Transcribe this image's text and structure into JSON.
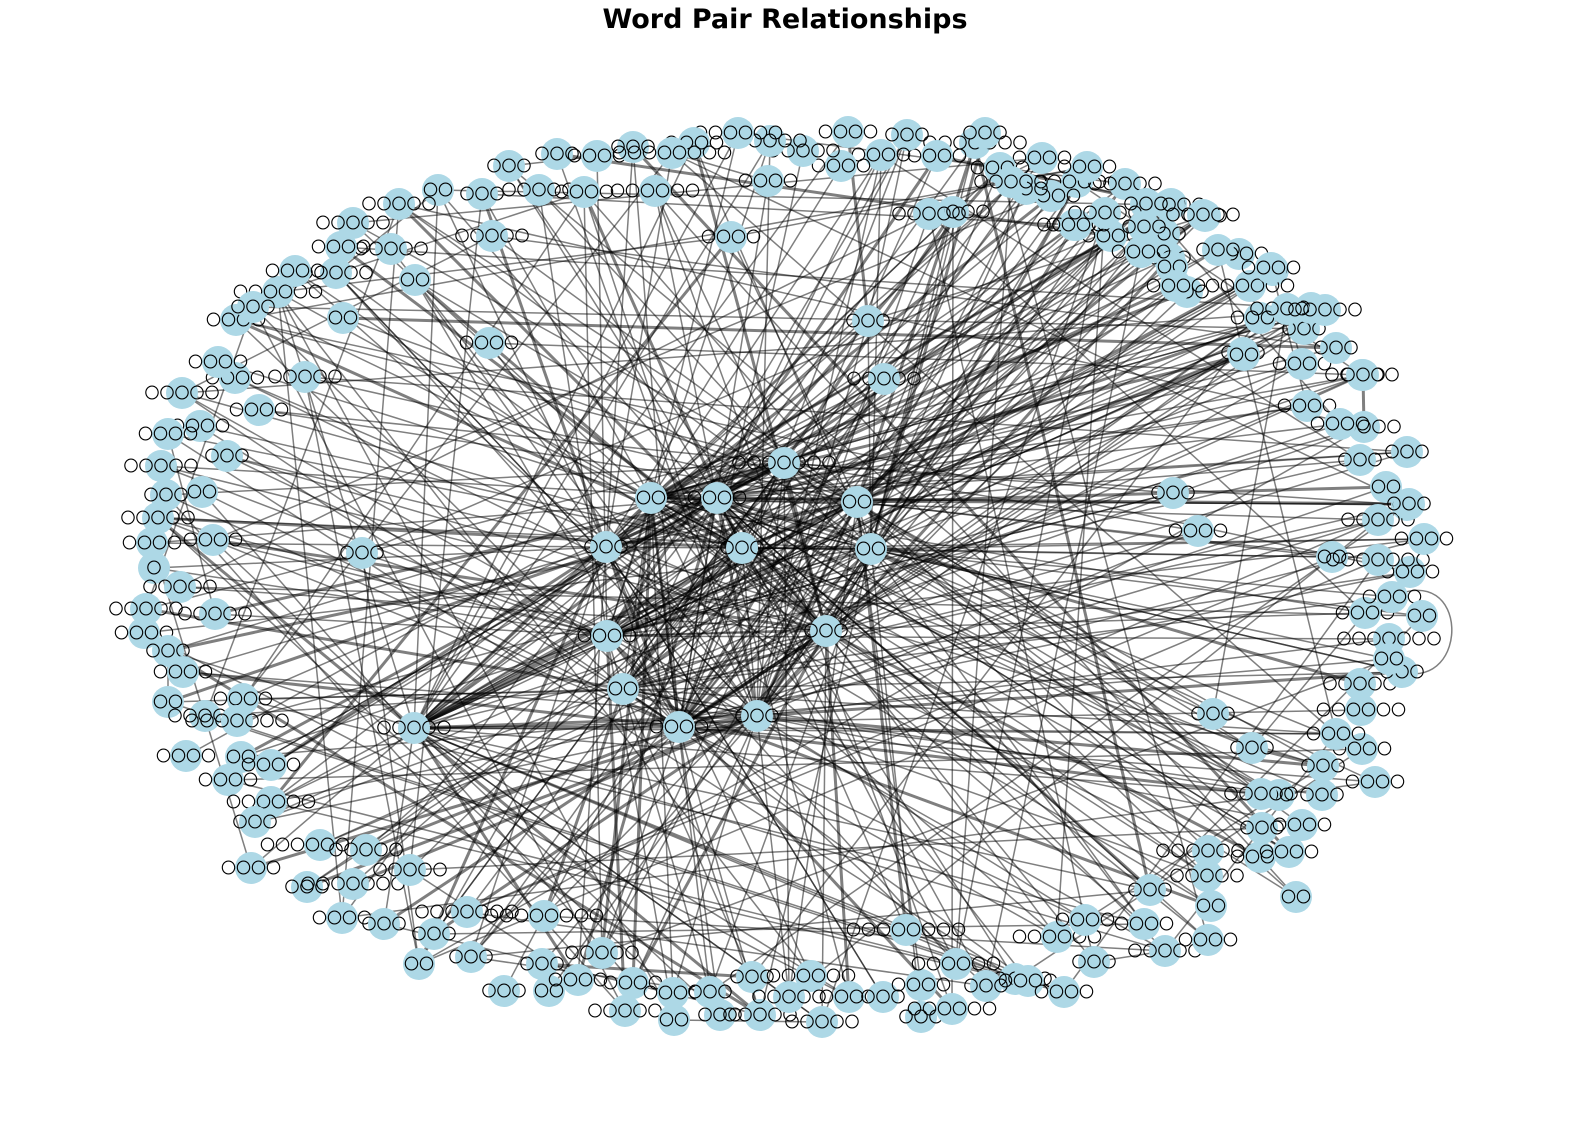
{
  "title": "Word Pair Relationships",
  "node_color": "#add8e6",
  "edge_color": "#000000",
  "nodes": [
    {
      "id": "n1",
      "label": "〇〇"
    },
    {
      "id": "n2",
      "label": "〇〇〇〇"
    },
    {
      "id": "n3",
      "label": "〇〇"
    },
    {
      "id": "n4",
      "label": "〇〇"
    },
    {
      "id": "n5",
      "label": "〇〇〇"
    },
    {
      "id": "n6",
      "label": "〇〇〇"
    },
    {
      "id": "n7",
      "label": "〇〇〇〇"
    },
    {
      "id": "n8",
      "label": "〇〇〇"
    },
    {
      "id": "n9",
      "label": "〇〇"
    },
    {
      "id": "n10",
      "label": "〇〇〇"
    },
    {
      "id": "n11",
      "label": "〇〇〇〇〇"
    },
    {
      "id": "n12",
      "label": "〇〇〇〇〇〇〇"
    },
    {
      "id": "n13",
      "label": "〇〇〇"
    },
    {
      "id": "n14",
      "label": "〇〇〇〇"
    },
    {
      "id": "n15",
      "label": "〇〇〇〇"
    },
    {
      "id": "n16",
      "label": "〇〇〇"
    },
    {
      "id": "n17",
      "label": "〇〇〇〇〇"
    },
    {
      "id": "n18",
      "label": "〇〇"
    },
    {
      "id": "n19",
      "label": "〇〇〇〇"
    },
    {
      "id": "n20",
      "label": "〇〇〇"
    },
    {
      "id": "n21",
      "label": "〇〇"
    },
    {
      "id": "n22",
      "label": "〇〇〇〇"
    },
    {
      "id": "n23",
      "label": "〇〇〇〇〇"
    },
    {
      "id": "n24",
      "label": "〇〇〇〇"
    },
    {
      "id": "n25",
      "label": "〇〇〇〇〇〇"
    },
    {
      "id": "n26",
      "label": "〇〇〇"
    },
    {
      "id": "n27",
      "label": "〇〇〇〇"
    },
    {
      "id": "n28",
      "label": "〇〇〇〇〇"
    },
    {
      "id": "n29",
      "label": "〇〇〇〇"
    },
    {
      "id": "n30",
      "label": "〇〇〇〇〇"
    },
    {
      "id": "n31",
      "label": "〇〇〇〇〇"
    },
    {
      "id": "n32",
      "label": "〇〇"
    },
    {
      "id": "n33",
      "label": "〇〇〇〇〇"
    },
    {
      "id": "n34",
      "label": "〇〇〇"
    },
    {
      "id": "n35",
      "label": "〇〇〇"
    },
    {
      "id": "n36",
      "label": "〇〇〇〇"
    },
    {
      "id": "n37",
      "label": "〇〇〇"
    },
    {
      "id": "n38",
      "label": "〇〇〇〇"
    },
    {
      "id": "n39",
      "label": "〇〇〇〇〇"
    },
    {
      "id": "n40",
      "label": "〇〇〇"
    },
    {
      "id": "n41",
      "label": "〇〇〇〇"
    },
    {
      "id": "n42",
      "label": "〇〇"
    },
    {
      "id": "n43",
      "label": "〇〇〇〇〇"
    },
    {
      "id": "n44",
      "label": "〇〇〇〇"
    },
    {
      "id": "n45",
      "label": "〇〇〇〇"
    },
    {
      "id": "n46",
      "label": "〇〇〇〇〇"
    },
    {
      "id": "n47",
      "label": "〇〇〇"
    },
    {
      "id": "n48",
      "label": "〇〇〇〇〇"
    },
    {
      "id": "n49",
      "label": "〇〇〇〇"
    },
    {
      "id": "n50",
      "label": "〇〇〇〇"
    },
    {
      "id": "n51",
      "label": "〇"
    },
    {
      "id": "n52",
      "label": "〇〇〇〇〇"
    },
    {
      "id": "n53",
      "label": "〇〇〇〇〇"
    },
    {
      "id": "n54",
      "label": "〇〇〇〇〇"
    },
    {
      "id": "n55",
      "label": "〇〇〇〇"
    },
    {
      "id": "n56",
      "label": "〇〇〇"
    },
    {
      "id": "n57",
      "label": "〇〇〇〇"
    },
    {
      "id": "n58",
      "label": "〇〇"
    },
    {
      "id": "n59",
      "label": "〇〇〇〇"
    },
    {
      "id": "n60",
      "label": "〇〇〇〇〇"
    },
    {
      "id": "n61",
      "label": "〇〇〇〇〇〇〇"
    },
    {
      "id": "n62",
      "label": "〇〇〇〇"
    },
    {
      "id": "n63",
      "label": "〇〇"
    },
    {
      "id": "n64",
      "label": "〇〇〇〇"
    },
    {
      "id": "n65",
      "label": "〇〇〇〇"
    },
    {
      "id": "n66",
      "label": "〇〇〇〇〇〇"
    },
    {
      "id": "n67",
      "label": "〇〇〇"
    },
    {
      "id": "n68",
      "label": "〇〇〇〇〇〇〇〇"
    },
    {
      "id": "n69",
      "label": "〇〇〇〇〇"
    },
    {
      "id": "n70",
      "label": "〇〇〇〇"
    },
    {
      "id": "n71",
      "label": "〇〇〇"
    },
    {
      "id": "n72",
      "label": "〇〇〇〇〇〇〇"
    },
    {
      "id": "n73",
      "label": "〇〇〇〇〇"
    },
    {
      "id": "n74",
      "label": "〇〇〇〇"
    },
    {
      "id": "n75",
      "label": "〇〇〇"
    },
    {
      "id": "n76",
      "label": "〇〇〇"
    },
    {
      "id": "n77",
      "label": "〇〇〇〇〇〇〇"
    },
    {
      "id": "n78",
      "label": "〇〇〇"
    },
    {
      "id": "n79",
      "label": "〇〇〇〇〇〇〇〇"
    },
    {
      "id": "n80",
      "label": "〇〇"
    },
    {
      "id": "n81",
      "label": "〇〇〇"
    },
    {
      "id": "n82",
      "label": "〇〇"
    },
    {
      "id": "n83",
      "label": "〇〇〇"
    },
    {
      "id": "n84",
      "label": "〇〇〇〇"
    },
    {
      "id": "n85",
      "label": "〇〇〇〇〇"
    },
    {
      "id": "n86",
      "label": "〇〇〇〇"
    },
    {
      "id": "n87",
      "label": "〇〇〇〇〇"
    },
    {
      "id": "n88",
      "label": "〇〇〇〇"
    },
    {
      "id": "n89",
      "label": "〇〇〇"
    },
    {
      "id": "n90",
      "label": "〇〇"
    },
    {
      "id": "n91",
      "label": "〇〇〇"
    },
    {
      "id": "n92",
      "label": "〇〇〇"
    },
    {
      "id": "n93",
      "label": "〇〇〇〇〇"
    },
    {
      "id": "n94",
      "label": "〇〇〇〇〇〇"
    },
    {
      "id": "n95",
      "label": "〇〇〇〇〇"
    },
    {
      "id": "n96",
      "label": "〇〇〇〇〇"
    },
    {
      "id": "n97",
      "label": "〇〇〇〇"
    },
    {
      "id": "n98",
      "label": "〇〇〇"
    },
    {
      "id": "n99",
      "label": "〇〇〇〇"
    },
    {
      "id": "n100",
      "label": "〇〇〇"
    },
    {
      "id": "n101",
      "label": "〇〇〇〇〇〇〇〇"
    },
    {
      "id": "n102",
      "label": "〇〇〇〇〇〇"
    },
    {
      "id": "n103",
      "label": "〇〇〇〇〇〇"
    },
    {
      "id": "n104",
      "label": "〇〇〇〇〇"
    },
    {
      "id": "n105",
      "label": "〇〇〇"
    },
    {
      "id": "n106",
      "label": "〇〇〇〇"
    },
    {
      "id": "n107",
      "label": "〇〇〇〇"
    },
    {
      "id": "n108",
      "label": "〇〇〇〇〇〇"
    },
    {
      "id": "n109",
      "label": "〇〇〇〇"
    },
    {
      "id": "n110",
      "label": "〇〇〇"
    },
    {
      "id": "n111",
      "label": "〇〇〇〇"
    },
    {
      "id": "n112",
      "label": "〇〇〇"
    },
    {
      "id": "n113",
      "label": "〇〇〇〇〇"
    },
    {
      "id": "n114",
      "label": "〇〇〇〇"
    },
    {
      "id": "n115",
      "label": "〇〇"
    },
    {
      "id": "n116",
      "label": "〇〇〇〇〇"
    },
    {
      "id": "n117",
      "label": "〇〇〇〇〇〇〇"
    },
    {
      "id": "n118",
      "label": "〇〇〇〇"
    },
    {
      "id": "n119",
      "label": "〇〇〇"
    },
    {
      "id": "n120",
      "label": "〇〇〇〇"
    },
    {
      "id": "n121",
      "label": "〇〇〇〇"
    },
    {
      "id": "n122",
      "label": "〇〇"
    },
    {
      "id": "n123",
      "label": "〇〇〇"
    },
    {
      "id": "n124",
      "label": "〇〇"
    },
    {
      "id": "n125",
      "label": "〇〇〇"
    },
    {
      "id": "n126",
      "label": "〇〇〇〇"
    },
    {
      "id": "n127",
      "label": "〇〇〇〇"
    },
    {
      "id": "n128",
      "label": "〇〇〇〇"
    },
    {
      "id": "n129",
      "label": "〇〇〇"
    },
    {
      "id": "n130",
      "label": "〇〇〇"
    },
    {
      "id": "n131",
      "label": "〇〇"
    },
    {
      "id": "n132",
      "label": "〇〇〇〇〇〇〇"
    },
    {
      "id": "n133",
      "label": "〇〇〇〇〇〇"
    },
    {
      "id": "n134",
      "label": "〇〇〇〇〇"
    },
    {
      "id": "n135",
      "label": "〇〇〇"
    },
    {
      "id": "n136",
      "label": "〇〇"
    },
    {
      "id": "n137",
      "label": "〇〇〇〇"
    },
    {
      "id": "n138",
      "label": "〇〇〇〇"
    },
    {
      "id": "n139",
      "label": "〇〇"
    },
    {
      "id": "n140",
      "label": "〇〇〇〇"
    },
    {
      "id": "n141",
      "label": "〇〇〇〇〇〇〇"
    },
    {
      "id": "n142",
      "label": "〇〇〇〇"
    },
    {
      "id": "n143",
      "label": "〇〇"
    },
    {
      "id": "n144",
      "label": "〇〇〇〇〇"
    },
    {
      "id": "n145",
      "label": "〇〇"
    },
    {
      "id": "n146",
      "label": "〇〇〇"
    },
    {
      "id": "n147",
      "label": "〇〇〇"
    },
    {
      "id": "n148",
      "label": "〇〇〇〇〇"
    },
    {
      "id": "n149",
      "label": "〇〇〇〇〇"
    },
    {
      "id": "n150",
      "label": "〇〇〇〇"
    },
    {
      "id": "n151",
      "label": "〇〇〇〇"
    },
    {
      "id": "n152",
      "label": "〇〇〇"
    },
    {
      "id": "n153",
      "label": "〇〇〇"
    },
    {
      "id": "n154",
      "label": "〇〇〇"
    },
    {
      "id": "n155",
      "label": "〇〇〇〇"
    },
    {
      "id": "n156",
      "label": "〇〇〇〇"
    },
    {
      "id": "n157",
      "label": "〇〇"
    },
    {
      "id": "n158",
      "label": "〇〇〇〇"
    },
    {
      "id": "n159",
      "label": "〇〇〇"
    },
    {
      "id": "n160",
      "label": "〇〇〇〇〇〇"
    },
    {
      "id": "n161",
      "label": "〇〇〇"
    },
    {
      "id": "n162",
      "label": "〇〇〇"
    },
    {
      "id": "n163",
      "label": "〇〇"
    },
    {
      "id": "n164",
      "label": "〇〇〇"
    },
    {
      "id": "n165",
      "label": "〇〇〇〇〇"
    },
    {
      "id": "n166",
      "label": "〇〇〇〇"
    },
    {
      "id": "n167",
      "label": "〇〇〇〇〇〇"
    },
    {
      "id": "n168",
      "label": "〇〇〇〇〇"
    },
    {
      "id": "n169",
      "label": "〇〇〇〇〇"
    },
    {
      "id": "n170",
      "label": "〇〇〇〇"
    },
    {
      "id": "n171",
      "label": "〇〇〇〇"
    },
    {
      "id": "n172",
      "label": "〇〇〇〇"
    },
    {
      "id": "n173",
      "label": "〇〇〇〇〇〇〇"
    },
    {
      "id": "n174",
      "label": "〇〇〇〇〇"
    },
    {
      "id": "n175",
      "label": "〇〇〇〇"
    },
    {
      "id": "n176",
      "label": "〇〇〇"
    },
    {
      "id": "n177",
      "label": "〇〇〇〇"
    },
    {
      "id": "n178",
      "label": "〇〇〇〇"
    },
    {
      "id": "n179",
      "label": "〇〇〇〇"
    },
    {
      "id": "n180",
      "label": "〇〇〇〇〇"
    },
    {
      "id": "n181",
      "label": "〇〇〇〇〇"
    },
    {
      "id": "n182",
      "label": "〇〇〇〇"
    },
    {
      "id": "n183",
      "label": "〇〇〇〇〇〇"
    },
    {
      "id": "n184",
      "label": "〇〇〇〇"
    },
    {
      "id": "n185",
      "label": "〇〇〇〇〇〇〇〇"
    },
    {
      "id": "n186",
      "label": "〇〇〇〇〇〇"
    },
    {
      "id": "n187",
      "label": "〇〇〇〇"
    },
    {
      "id": "n188",
      "label": "〇〇〇〇〇"
    },
    {
      "id": "n189",
      "label": "〇〇〇"
    },
    {
      "id": "n190",
      "label": "〇〇〇〇"
    },
    {
      "id": "n191",
      "label": "〇〇〇〇"
    },
    {
      "id": "n192",
      "label": "〇〇"
    },
    {
      "id": "n193",
      "label": "〇〇〇"
    },
    {
      "id": "n194",
      "label": "〇〇〇〇"
    },
    {
      "id": "n195",
      "label": "〇〇〇"
    },
    {
      "id": "n196",
      "label": "〇〇〇〇〇"
    },
    {
      "id": "n197",
      "label": "〇〇〇〇〇"
    },
    {
      "id": "n198",
      "label": "〇〇〇〇"
    },
    {
      "id": "n199",
      "label": "〇〇〇〇〇"
    },
    {
      "id": "n200",
      "label": "〇〇〇"
    },
    {
      "id": "n201",
      "label": "〇〇〇"
    },
    {
      "id": "n202",
      "label": "〇〇"
    },
    {
      "id": "n203",
      "label": "〇〇〇〇〇"
    },
    {
      "id": "n204",
      "label": "〇〇〇〇〇"
    },
    {
      "id": "n205",
      "label": "〇〇〇"
    },
    {
      "id": "n206",
      "label": "〇〇〇〇"
    },
    {
      "id": "n207",
      "label": "〇〇〇〇〇"
    },
    {
      "id": "n208",
      "label": "〇〇〇〇〇"
    },
    {
      "id": "n209",
      "label": "〇〇〇"
    },
    {
      "id": "n210",
      "label": "〇〇〇〇"
    },
    {
      "id": "n211",
      "label": "〇〇〇〇"
    },
    {
      "id": "n212",
      "label": "〇〇〇"
    }
  ]
}
